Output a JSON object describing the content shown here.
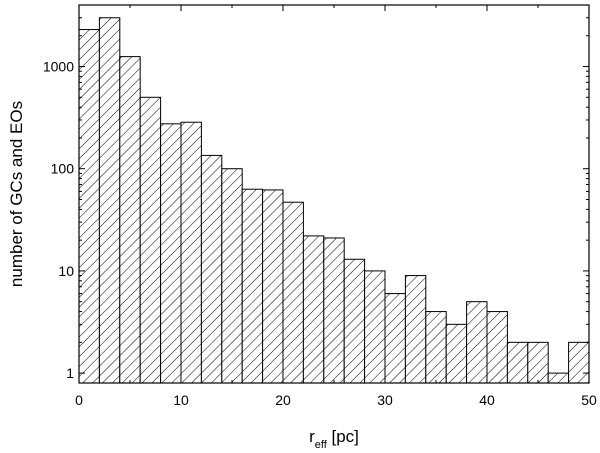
{
  "chart_data": {
    "type": "bar",
    "title": "",
    "xlabel_main": "r",
    "xlabel_sub": "eff",
    "xlabel_unit": " [pc]",
    "ylabel": "number of GCs and EOs",
    "xlim": [
      0,
      50
    ],
    "ylim": [
      0.8,
      4000
    ],
    "y_scale": "log",
    "grid": false,
    "bin_width": 2,
    "bin_starts": [
      0,
      2,
      4,
      6,
      8,
      10,
      12,
      14,
      16,
      18,
      20,
      22,
      24,
      26,
      28,
      30,
      32,
      34,
      36,
      38,
      40,
      42,
      44,
      46,
      48
    ],
    "values": [
      2300,
      3000,
      1250,
      500,
      275,
      285,
      135,
      100,
      63,
      62,
      47,
      22,
      21,
      13,
      10,
      6,
      9,
      4,
      3,
      5,
      4,
      2,
      2,
      1,
      2
    ],
    "x_ticks": [
      {
        "value": 0,
        "label": "0"
      },
      {
        "value": 10,
        "label": "10"
      },
      {
        "value": 20,
        "label": "20"
      },
      {
        "value": 30,
        "label": "30"
      },
      {
        "value": 40,
        "label": "40"
      },
      {
        "value": 50,
        "label": "50"
      }
    ],
    "y_ticks": [
      {
        "value": 1,
        "label": "1"
      },
      {
        "value": 10,
        "label": "10"
      },
      {
        "value": 100,
        "label": "100"
      },
      {
        "value": 1000,
        "label": "1000"
      }
    ]
  }
}
